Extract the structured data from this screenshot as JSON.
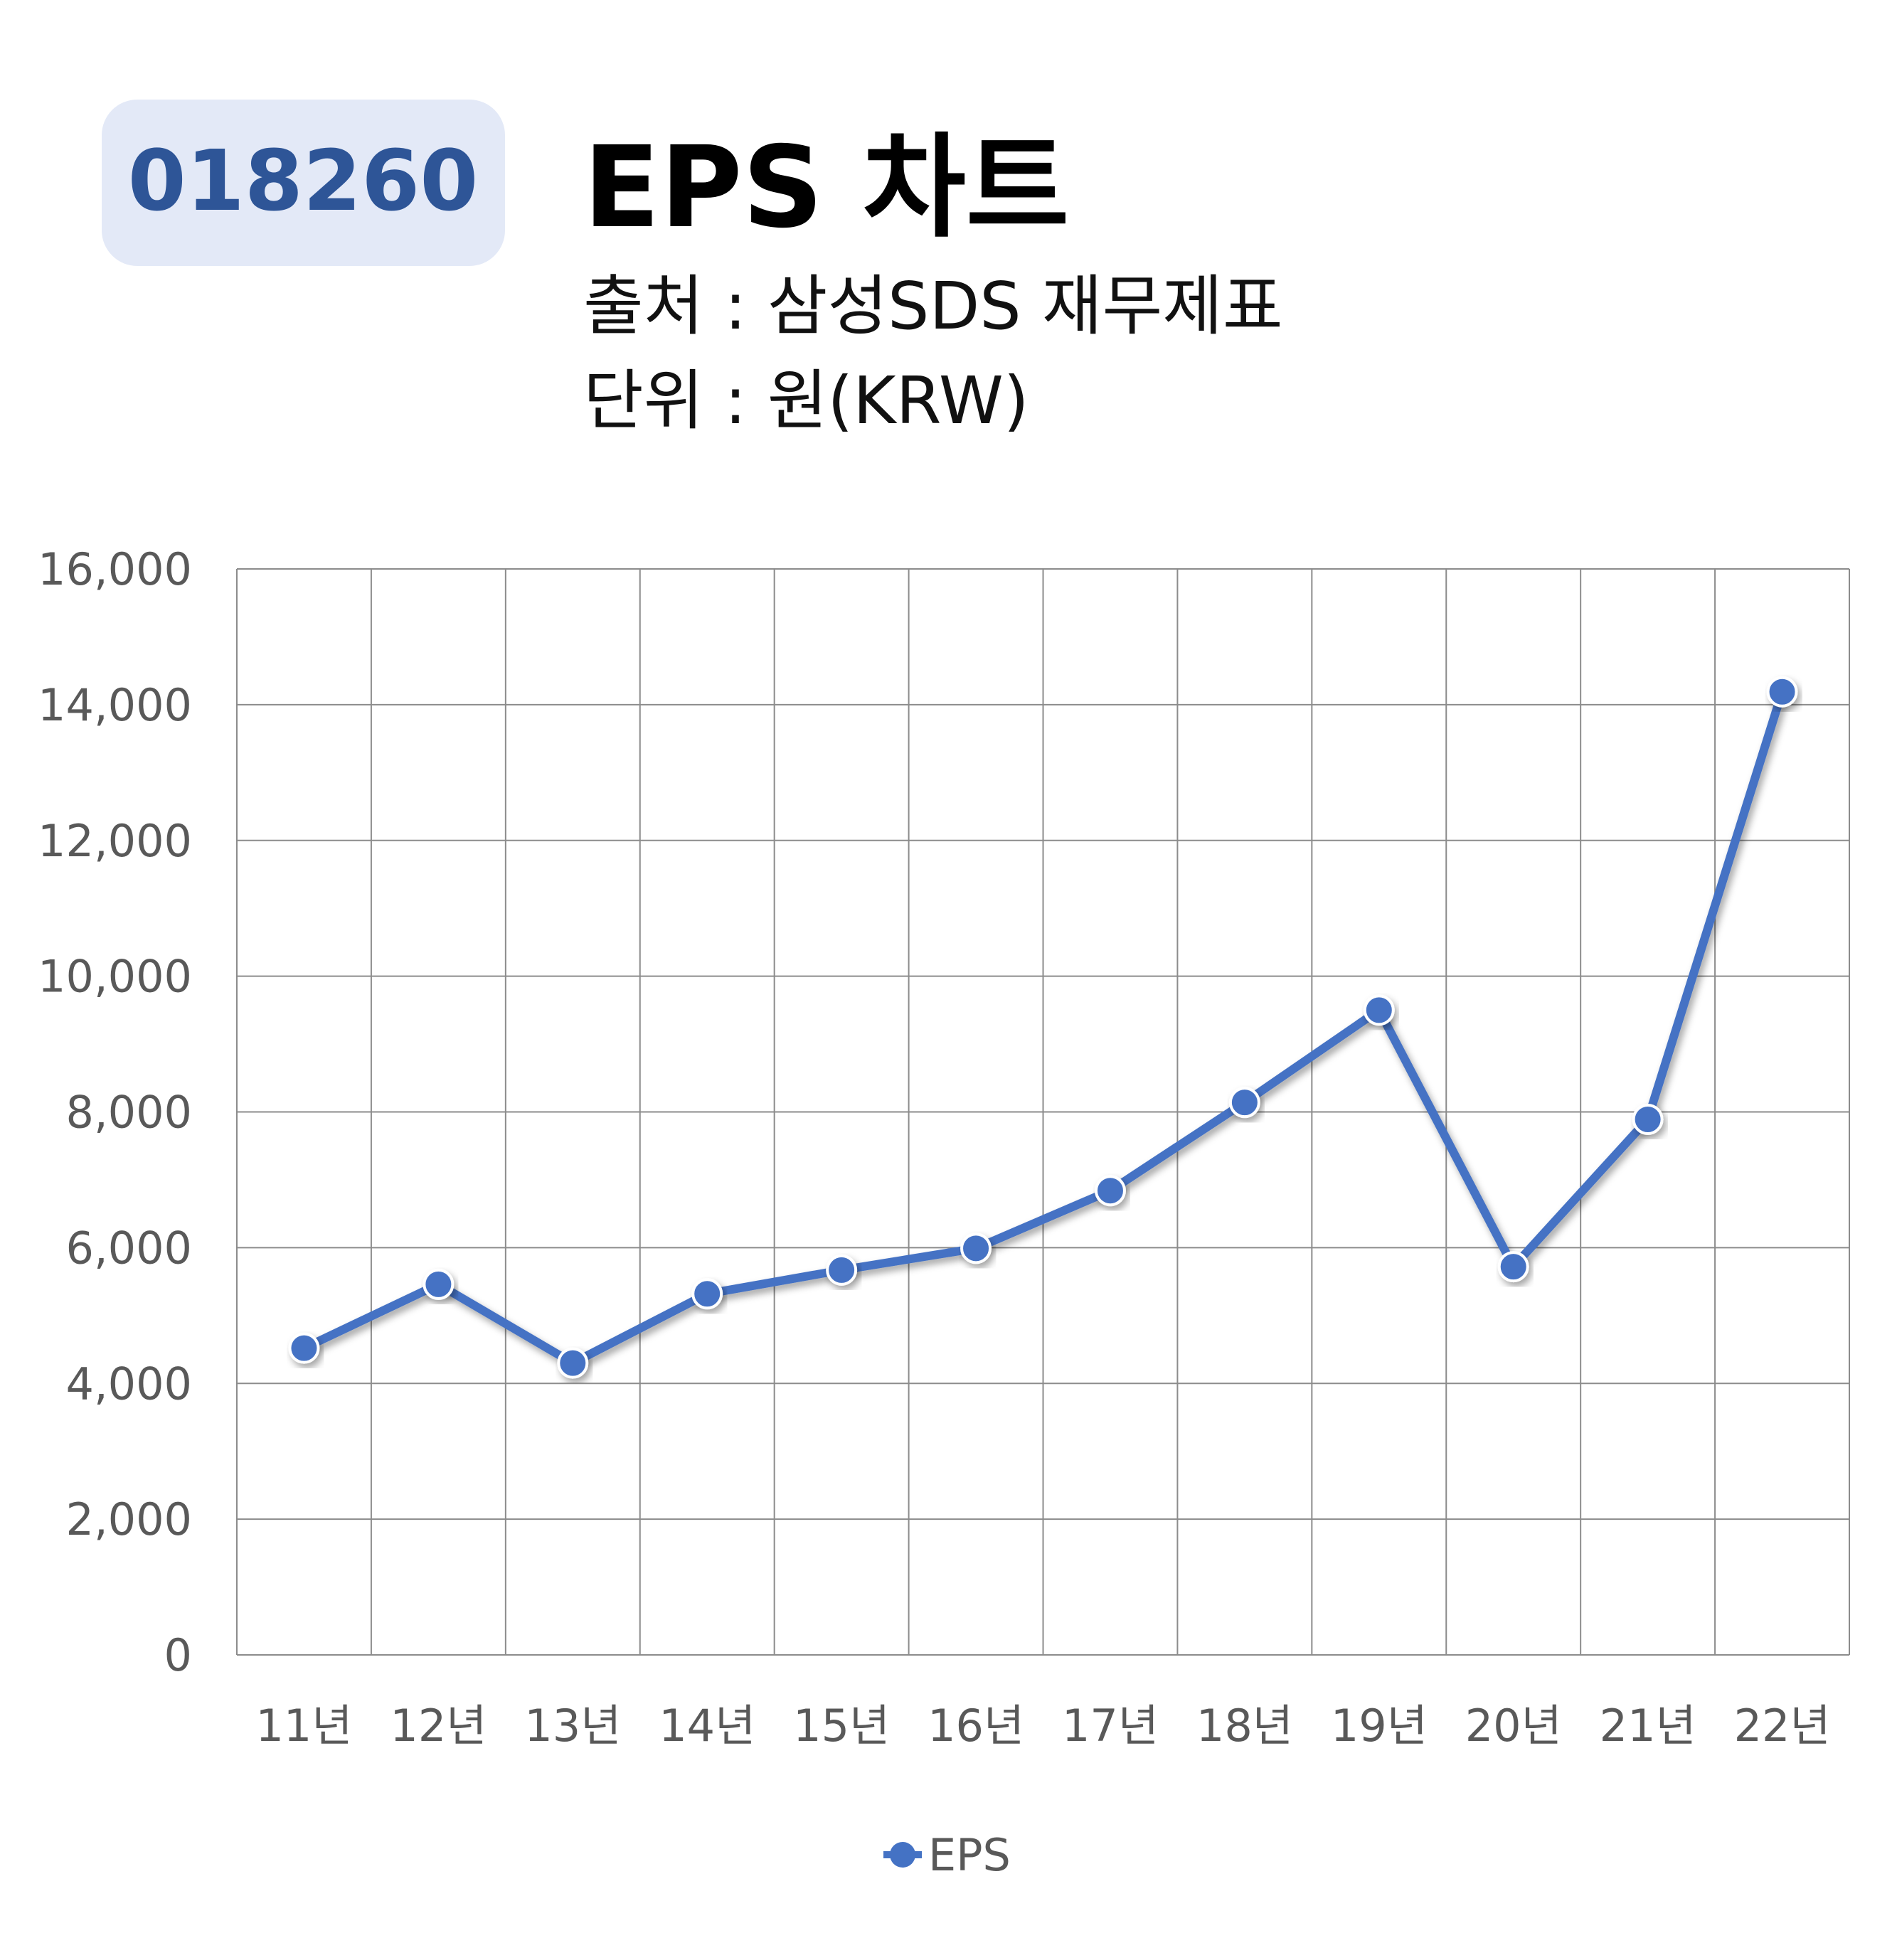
{
  "header": {
    "ticker": "018260",
    "title": "EPS 차트",
    "source_line": "출처 : 삼성SDS 재무제표",
    "unit_line": "단위 : 원(KRW)"
  },
  "colors": {
    "accent": "#4472C4",
    "badge_bg": "#E3E9F7",
    "badge_text": "#2E5597",
    "grid": "#8C8C8C",
    "axis_text": "#595959",
    "title_text": "#000000"
  },
  "chart_data": {
    "type": "line",
    "title": "EPS 차트",
    "categories": [
      "11년",
      "12년",
      "13년",
      "14년",
      "15년",
      "16년",
      "17년",
      "18년",
      "19년",
      "20년",
      "21년",
      "22년"
    ],
    "series": [
      {
        "name": "EPS",
        "values": [
          4520,
          5460,
          4300,
          5320,
          5670,
          5990,
          6840,
          8140,
          9500,
          5720,
          7890,
          14190
        ]
      }
    ],
    "ylim": [
      0,
      16000
    ],
    "yticks": [
      0,
      2000,
      4000,
      6000,
      8000,
      10000,
      12000,
      14000,
      16000
    ],
    "ytick_labels": [
      "0",
      "2,000",
      "4,000",
      "6,000",
      "8,000",
      "10,000",
      "12,000",
      "14,000",
      "16,000"
    ],
    "xlabel": "",
    "ylabel": "",
    "grid": true,
    "legend": {
      "position": "bottom-center",
      "entries": [
        "EPS"
      ]
    }
  }
}
